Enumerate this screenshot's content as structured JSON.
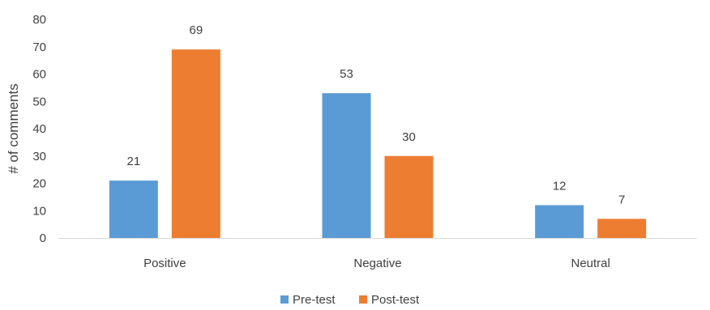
{
  "chart_data": {
    "type": "bar",
    "title": "",
    "xlabel": "",
    "ylabel": "# of comments",
    "categories": [
      "Positive",
      "Negative",
      "Neutral"
    ],
    "series": [
      {
        "name": "Pre-test",
        "values": [
          21,
          53,
          12
        ],
        "color": "#5B9BD5"
      },
      {
        "name": "Post-test",
        "values": [
          69,
          30,
          7
        ],
        "color": "#ED7D31"
      }
    ],
    "ylim": [
      0,
      80
    ],
    "yticks": [
      0,
      10,
      20,
      30,
      40,
      50,
      60,
      70,
      80
    ],
    "grid": false,
    "legend": "bottom-center",
    "data_labels": true
  }
}
